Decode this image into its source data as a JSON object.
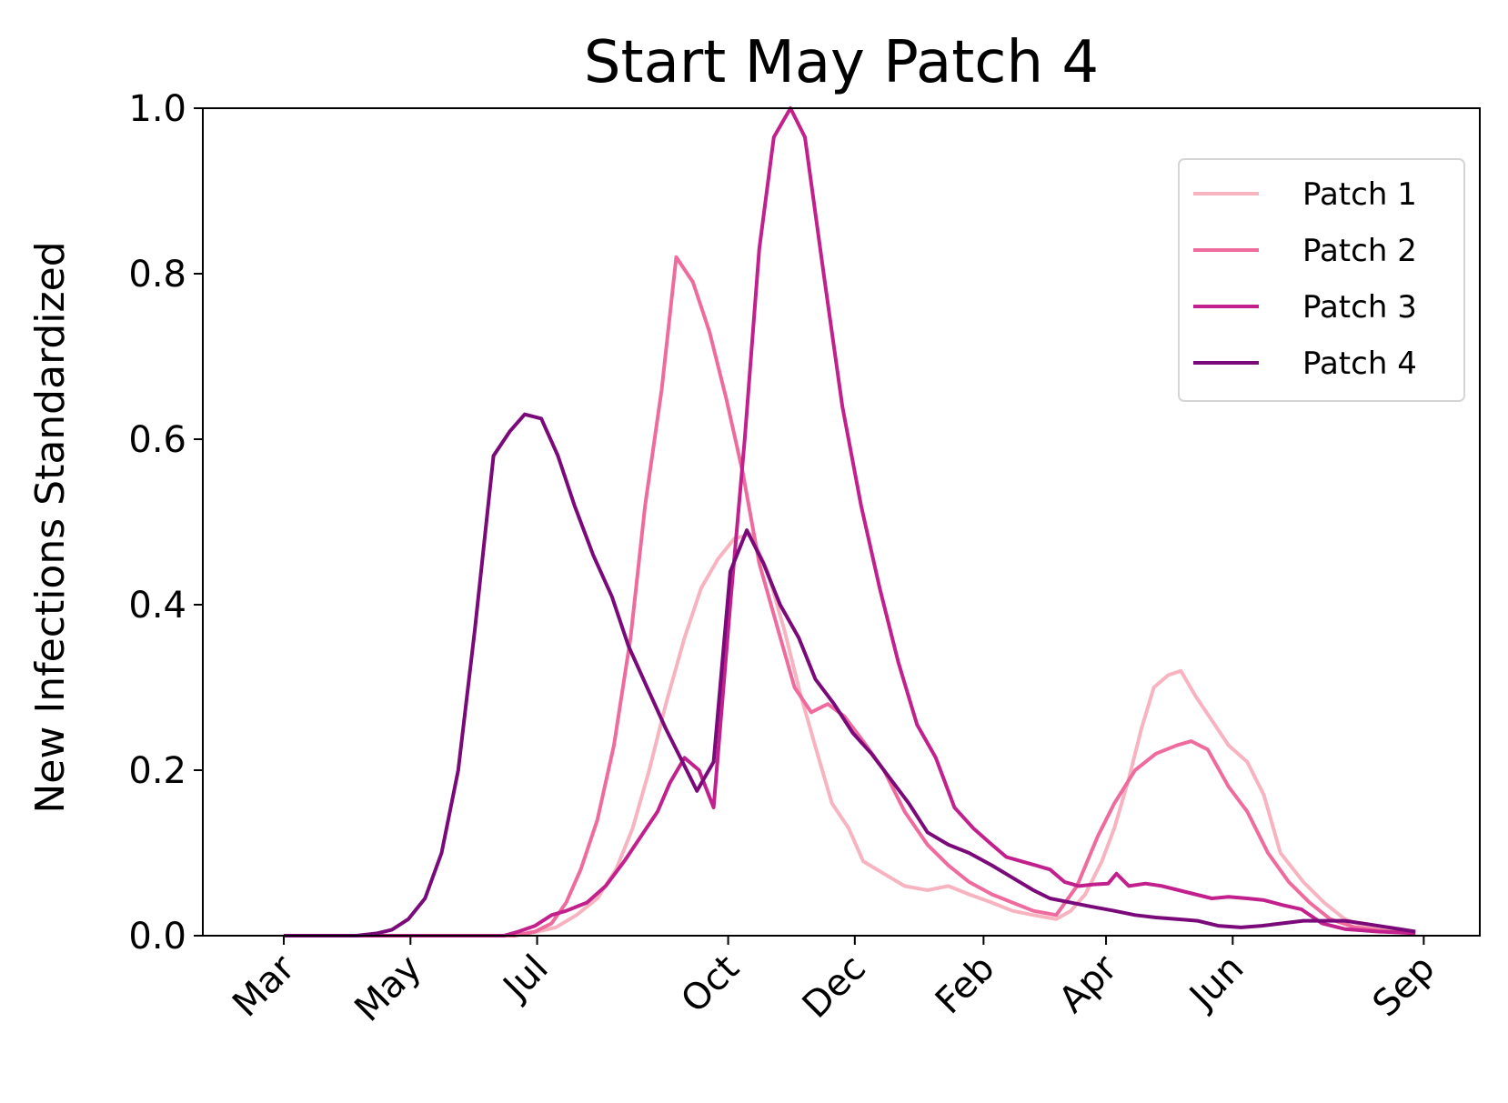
{
  "chart_data": {
    "type": "line",
    "title": "Start May Patch 4",
    "xlabel": "",
    "ylabel": "New Infections Standardized",
    "x_tick_labels": [
      "Mar",
      "May",
      "Jul",
      "Oct",
      "Dec",
      "Feb",
      "Apr",
      "Jun",
      "Sep"
    ],
    "x_tick_dates": [
      "2020-03-01",
      "2020-05-01",
      "2020-07-01",
      "2020-10-01",
      "2020-12-01",
      "2021-02-01",
      "2021-04-01",
      "2021-06-01",
      "2021-09-01"
    ],
    "x_range": [
      "2020-01-22",
      "2021-09-28"
    ],
    "ylim": [
      0,
      1
    ],
    "y_ticks": [
      "0.0",
      "0.2",
      "0.4",
      "0.6",
      "0.8",
      "1.0"
    ],
    "grid": false,
    "legend_position": "top-right",
    "series": [
      {
        "name": "Patch 1",
        "color": "#f8b3c0",
        "points": [
          [
            "2020-03-01",
            0
          ],
          [
            "2020-04-01",
            0
          ],
          [
            "2020-05-01",
            0
          ],
          [
            "2020-06-01",
            0
          ],
          [
            "2020-06-20",
            0
          ],
          [
            "2020-07-01",
            0.005
          ],
          [
            "2020-07-10",
            0.01
          ],
          [
            "2020-07-20",
            0.025
          ],
          [
            "2020-07-30",
            0.045
          ],
          [
            "2020-08-08",
            0.08
          ],
          [
            "2020-08-16",
            0.13
          ],
          [
            "2020-08-24",
            0.2
          ],
          [
            "2020-09-01",
            0.28
          ],
          [
            "2020-09-10",
            0.36
          ],
          [
            "2020-09-18",
            0.42
          ],
          [
            "2020-09-26",
            0.455
          ],
          [
            "2020-10-04",
            0.48
          ],
          [
            "2020-10-12",
            0.485
          ],
          [
            "2020-10-20",
            0.44
          ],
          [
            "2020-10-28",
            0.37
          ],
          [
            "2020-11-05",
            0.29
          ],
          [
            "2020-11-13",
            0.22
          ],
          [
            "2020-11-20",
            0.16
          ],
          [
            "2020-11-28",
            0.13
          ],
          [
            "2020-12-05",
            0.09
          ],
          [
            "2020-12-15",
            0.075
          ],
          [
            "2020-12-25",
            0.06
          ],
          [
            "2021-01-05",
            0.055
          ],
          [
            "2021-01-15",
            0.06
          ],
          [
            "2021-01-25",
            0.05
          ],
          [
            "2021-02-05",
            0.04
          ],
          [
            "2021-02-15",
            0.03
          ],
          [
            "2021-02-25",
            0.025
          ],
          [
            "2021-03-08",
            0.02
          ],
          [
            "2021-03-15",
            0.03
          ],
          [
            "2021-03-22",
            0.05
          ],
          [
            "2021-03-30",
            0.09
          ],
          [
            "2021-04-05",
            0.13
          ],
          [
            "2021-04-12",
            0.19
          ],
          [
            "2021-04-18",
            0.25
          ],
          [
            "2021-04-24",
            0.3
          ],
          [
            "2021-05-01",
            0.315
          ],
          [
            "2021-05-07",
            0.32
          ],
          [
            "2021-05-14",
            0.29
          ],
          [
            "2021-05-22",
            0.26
          ],
          [
            "2021-05-30",
            0.23
          ],
          [
            "2021-06-08",
            0.21
          ],
          [
            "2021-06-16",
            0.17
          ],
          [
            "2021-06-24",
            0.1
          ],
          [
            "2021-07-05",
            0.065
          ],
          [
            "2021-07-15",
            0.04
          ],
          [
            "2021-07-25",
            0.02
          ],
          [
            "2021-08-05",
            0.01
          ],
          [
            "2021-08-20",
            0.005
          ],
          [
            "2021-08-28",
            0.003
          ]
        ]
      },
      {
        "name": "Patch 2",
        "color": "#ef6b9e",
        "points": [
          [
            "2020-03-01",
            0
          ],
          [
            "2020-04-01",
            0
          ],
          [
            "2020-05-01",
            0
          ],
          [
            "2020-06-01",
            0
          ],
          [
            "2020-06-20",
            0
          ],
          [
            "2020-06-30",
            0.005
          ],
          [
            "2020-07-08",
            0.015
          ],
          [
            "2020-07-15",
            0.04
          ],
          [
            "2020-07-22",
            0.08
          ],
          [
            "2020-07-30",
            0.14
          ],
          [
            "2020-08-07",
            0.23
          ],
          [
            "2020-08-15",
            0.36
          ],
          [
            "2020-08-22",
            0.52
          ],
          [
            "2020-08-30",
            0.66
          ],
          [
            "2020-09-06",
            0.82
          ],
          [
            "2020-09-14",
            0.79
          ],
          [
            "2020-09-22",
            0.73
          ],
          [
            "2020-09-30",
            0.65
          ],
          [
            "2020-10-08",
            0.56
          ],
          [
            "2020-10-16",
            0.45
          ],
          [
            "2020-10-25",
            0.37
          ],
          [
            "2020-11-02",
            0.3
          ],
          [
            "2020-11-10",
            0.27
          ],
          [
            "2020-11-18",
            0.28
          ],
          [
            "2020-11-26",
            0.265
          ],
          [
            "2020-12-05",
            0.235
          ],
          [
            "2020-12-15",
            0.2
          ],
          [
            "2020-12-25",
            0.15
          ],
          [
            "2021-01-05",
            0.11
          ],
          [
            "2021-01-15",
            0.085
          ],
          [
            "2021-01-25",
            0.065
          ],
          [
            "2021-02-05",
            0.05
          ],
          [
            "2021-02-15",
            0.04
          ],
          [
            "2021-02-25",
            0.03
          ],
          [
            "2021-03-08",
            0.025
          ],
          [
            "2021-03-18",
            0.06
          ],
          [
            "2021-03-28",
            0.12
          ],
          [
            "2021-04-05",
            0.16
          ],
          [
            "2021-04-15",
            0.2
          ],
          [
            "2021-04-25",
            0.22
          ],
          [
            "2021-05-05",
            0.23
          ],
          [
            "2021-05-12",
            0.235
          ],
          [
            "2021-05-20",
            0.225
          ],
          [
            "2021-05-30",
            0.18
          ],
          [
            "2021-06-08",
            0.15
          ],
          [
            "2021-06-18",
            0.1
          ],
          [
            "2021-06-28",
            0.065
          ],
          [
            "2021-07-08",
            0.04
          ],
          [
            "2021-07-18",
            0.02
          ],
          [
            "2021-07-30",
            0.01
          ],
          [
            "2021-08-15",
            0.005
          ],
          [
            "2021-08-28",
            0.003
          ]
        ]
      },
      {
        "name": "Patch 3",
        "color": "#c2208c",
        "points": [
          [
            "2020-03-01",
            0
          ],
          [
            "2020-04-01",
            0
          ],
          [
            "2020-05-01",
            0
          ],
          [
            "2020-06-01",
            0
          ],
          [
            "2020-06-15",
            0
          ],
          [
            "2020-06-22",
            0.005
          ],
          [
            "2020-06-30",
            0.012
          ],
          [
            "2020-07-08",
            0.025
          ],
          [
            "2020-07-15",
            0.03
          ],
          [
            "2020-07-25",
            0.04
          ],
          [
            "2020-08-03",
            0.06
          ],
          [
            "2020-08-12",
            0.09
          ],
          [
            "2020-08-20",
            0.12
          ],
          [
            "2020-08-28",
            0.15
          ],
          [
            "2020-09-03",
            0.185
          ],
          [
            "2020-09-10",
            0.215
          ],
          [
            "2020-09-17",
            0.2
          ],
          [
            "2020-09-24",
            0.155
          ],
          [
            "2020-10-02",
            0.4
          ],
          [
            "2020-10-09",
            0.6
          ],
          [
            "2020-10-16",
            0.83
          ],
          [
            "2020-10-23",
            0.965
          ],
          [
            "2020-10-31",
            1.0
          ],
          [
            "2020-11-07",
            0.965
          ],
          [
            "2020-11-16",
            0.8
          ],
          [
            "2020-11-25",
            0.64
          ],
          [
            "2020-12-04",
            0.52
          ],
          [
            "2020-12-13",
            0.42
          ],
          [
            "2020-12-22",
            0.33
          ],
          [
            "2020-12-31",
            0.255
          ],
          [
            "2021-01-09",
            0.215
          ],
          [
            "2021-01-18",
            0.155
          ],
          [
            "2021-01-27",
            0.13
          ],
          [
            "2021-02-05",
            0.11
          ],
          [
            "2021-02-12",
            0.095
          ],
          [
            "2021-02-19",
            0.09
          ],
          [
            "2021-02-26",
            0.085
          ],
          [
            "2021-03-05",
            0.08
          ],
          [
            "2021-03-12",
            0.065
          ],
          [
            "2021-03-19",
            0.06
          ],
          [
            "2021-03-26",
            0.062
          ],
          [
            "2021-04-02",
            0.063
          ],
          [
            "2021-04-06",
            0.075
          ],
          [
            "2021-04-12",
            0.06
          ],
          [
            "2021-04-20",
            0.063
          ],
          [
            "2021-04-28",
            0.06
          ],
          [
            "2021-05-06",
            0.055
          ],
          [
            "2021-05-14",
            0.05
          ],
          [
            "2021-05-22",
            0.045
          ],
          [
            "2021-05-30",
            0.047
          ],
          [
            "2021-06-08",
            0.045
          ],
          [
            "2021-06-16",
            0.043
          ],
          [
            "2021-06-25",
            0.037
          ],
          [
            "2021-07-04",
            0.032
          ],
          [
            "2021-07-14",
            0.015
          ],
          [
            "2021-07-25",
            0.008
          ],
          [
            "2021-08-10",
            0.005
          ],
          [
            "2021-08-28",
            0.003
          ]
        ]
      },
      {
        "name": "Patch 4",
        "color": "#7a0a7a",
        "points": [
          [
            "2020-03-01",
            0
          ],
          [
            "2020-03-20",
            0
          ],
          [
            "2020-04-05",
            0
          ],
          [
            "2020-04-15",
            0.003
          ],
          [
            "2020-04-22",
            0.007
          ],
          [
            "2020-04-30",
            0.02
          ],
          [
            "2020-05-08",
            0.045
          ],
          [
            "2020-05-16",
            0.1
          ],
          [
            "2020-05-24",
            0.2
          ],
          [
            "2020-06-01",
            0.37
          ],
          [
            "2020-06-10",
            0.58
          ],
          [
            "2020-06-18",
            0.61
          ],
          [
            "2020-06-25",
            0.63
          ],
          [
            "2020-07-03",
            0.625
          ],
          [
            "2020-07-11",
            0.58
          ],
          [
            "2020-07-19",
            0.52
          ],
          [
            "2020-07-28",
            0.46
          ],
          [
            "2020-08-06",
            0.41
          ],
          [
            "2020-08-14",
            0.35
          ],
          [
            "2020-08-23",
            0.3
          ],
          [
            "2020-09-01",
            0.25
          ],
          [
            "2020-09-09",
            0.21
          ],
          [
            "2020-09-16",
            0.175
          ],
          [
            "2020-09-24",
            0.21
          ],
          [
            "2020-10-02",
            0.44
          ],
          [
            "2020-10-10",
            0.49
          ],
          [
            "2020-10-18",
            0.45
          ],
          [
            "2020-10-26",
            0.4
          ],
          [
            "2020-11-04",
            0.36
          ],
          [
            "2020-11-12",
            0.31
          ],
          [
            "2020-11-21",
            0.28
          ],
          [
            "2020-11-30",
            0.245
          ],
          [
            "2020-12-09",
            0.22
          ],
          [
            "2020-12-18",
            0.19
          ],
          [
            "2020-12-27",
            0.16
          ],
          [
            "2021-01-05",
            0.125
          ],
          [
            "2021-01-15",
            0.11
          ],
          [
            "2021-01-25",
            0.1
          ],
          [
            "2021-02-05",
            0.085
          ],
          [
            "2021-02-15",
            0.07
          ],
          [
            "2021-02-25",
            0.055
          ],
          [
            "2021-03-05",
            0.045
          ],
          [
            "2021-03-15",
            0.04
          ],
          [
            "2021-03-25",
            0.035
          ],
          [
            "2021-04-05",
            0.03
          ],
          [
            "2021-04-15",
            0.025
          ],
          [
            "2021-04-25",
            0.022
          ],
          [
            "2021-05-05",
            0.02
          ],
          [
            "2021-05-15",
            0.018
          ],
          [
            "2021-05-25",
            0.012
          ],
          [
            "2021-06-05",
            0.01
          ],
          [
            "2021-06-15",
            0.012
          ],
          [
            "2021-06-25",
            0.015
          ],
          [
            "2021-07-05",
            0.018
          ],
          [
            "2021-07-15",
            0.018
          ],
          [
            "2021-07-25",
            0.018
          ],
          [
            "2021-08-05",
            0.014
          ],
          [
            "2021-08-15",
            0.01
          ],
          [
            "2021-08-28",
            0.005
          ]
        ]
      }
    ]
  }
}
